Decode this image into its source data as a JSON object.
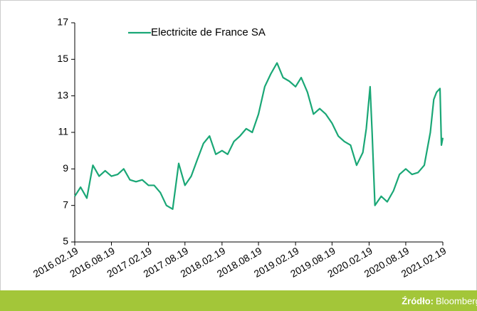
{
  "chart_data": {
    "type": "line",
    "x": [
      "2016.02.19",
      "2016.03.19",
      "2016.04.19",
      "2016.05.19",
      "2016.06.19",
      "2016.07.19",
      "2016.08.19",
      "2016.09.19",
      "2016.10.19",
      "2016.11.19",
      "2016.12.19",
      "2017.01.19",
      "2017.02.19",
      "2017.03.19",
      "2017.04.19",
      "2017.05.19",
      "2017.06.19",
      "2017.07.19",
      "2017.08.19",
      "2017.09.19",
      "2017.10.19",
      "2017.11.19",
      "2017.12.19",
      "2018.01.19",
      "2018.02.19",
      "2018.03.19",
      "2018.04.19",
      "2018.05.19",
      "2018.06.19",
      "2018.07.19",
      "2018.08.19",
      "2018.09.19",
      "2018.10.19",
      "2018.11.19",
      "2018.12.19",
      "2019.01.19",
      "2019.02.19",
      "2019.03.19",
      "2019.04.19",
      "2019.05.19",
      "2019.06.19",
      "2019.07.19",
      "2019.08.19",
      "2019.09.19",
      "2019.10.19",
      "2019.11.19",
      "2019.12.19",
      "2020.01.19",
      "2020.02.05",
      "2020.02.24",
      "2020.03.05",
      "2020.03.19",
      "2020.04.19",
      "2020.05.19",
      "2020.06.19",
      "2020.07.19",
      "2020.08.19",
      "2020.09.19",
      "2020.10.19",
      "2020.11.19",
      "2020.12.19",
      "2021.01.05",
      "2021.01.19",
      "2021.02.05",
      "2021.02.12",
      "2021.02.19"
    ],
    "series": [
      {
        "name": "Electricite de France SA",
        "color": "#1aa776",
        "values": [
          7.5,
          8.0,
          7.4,
          9.2,
          8.6,
          8.9,
          8.6,
          8.7,
          9.0,
          8.4,
          8.3,
          8.4,
          8.1,
          8.1,
          7.7,
          7.0,
          6.8,
          9.3,
          8.1,
          8.6,
          9.5,
          10.4,
          10.8,
          9.8,
          10.0,
          9.8,
          10.5,
          10.8,
          11.2,
          11.0,
          12.0,
          13.5,
          14.2,
          14.8,
          14.0,
          13.8,
          13.5,
          14.0,
          13.2,
          12.0,
          12.3,
          12.0,
          11.5,
          10.8,
          10.5,
          10.3,
          9.2,
          9.9,
          11.2,
          13.5,
          11.0,
          7.0,
          7.5,
          7.2,
          7.8,
          8.7,
          9.0,
          8.7,
          8.8,
          9.2,
          11.0,
          12.8,
          13.2,
          13.4,
          10.3,
          10.7
        ]
      }
    ],
    "xlim": [
      "2016.02.19",
      "2021.02.19"
    ],
    "xticks": [
      "2016.02.19",
      "2016.08.19",
      "2017.02.19",
      "2017.08.19",
      "2018.02.19",
      "2018.08.19",
      "2019.02.19",
      "2019.08.19",
      "2020.02.19",
      "2020.08.19",
      "2021.02.19"
    ],
    "ylim": [
      5,
      17
    ],
    "yticks": [
      5,
      7,
      9,
      11,
      13,
      15,
      17
    ],
    "source_label": "Źródło:",
    "source": "Bloomberg"
  }
}
